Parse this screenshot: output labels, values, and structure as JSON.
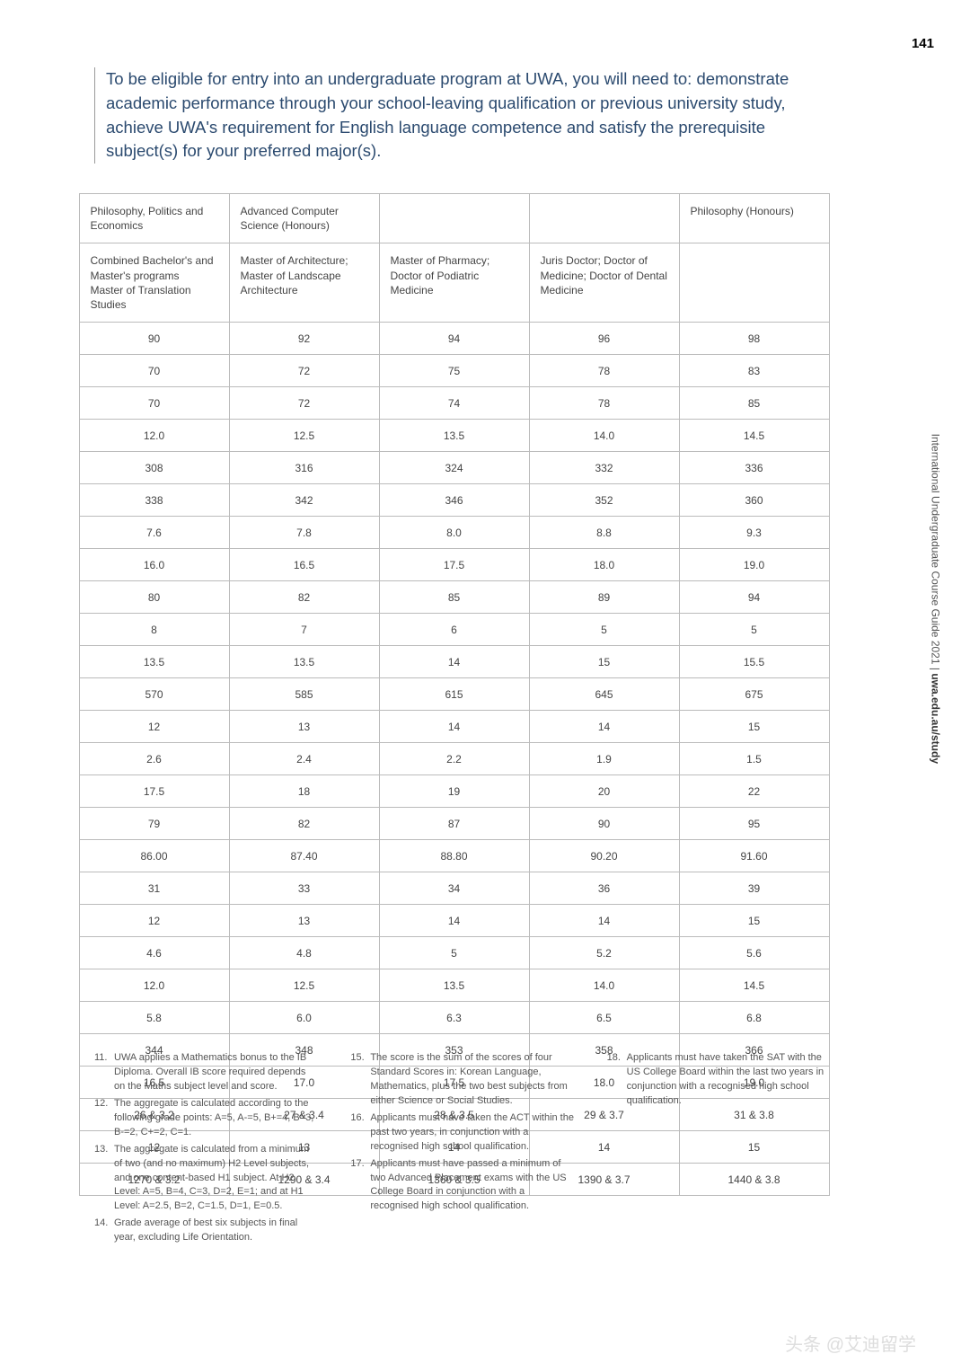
{
  "page_number": "141",
  "intro": "To be eligible for entry into an undergraduate program at UWA, you will need to: demonstrate academic performance through your school-leaving qualification or previous university study, achieve UWA's requirement for English language competence and satisfy the prerequisite subject(s) for your preferred major(s).",
  "table": {
    "head1": [
      "Philosophy, Politics and Economics",
      "Advanced Computer Science (Honours)",
      "",
      "",
      "Philosophy (Honours)"
    ],
    "head2": [
      "Combined Bachelor's and Master's programs\nMaster of Translation Studies",
      "Master of Architecture; Master of Landscape Architecture",
      "Master of Pharmacy; Doctor of Podiatric Medicine",
      "Juris Doctor; Doctor of Medicine; Doctor of Dental Medicine",
      ""
    ],
    "rows": [
      [
        "90",
        "92",
        "94",
        "96",
        "98"
      ],
      [
        "70",
        "72",
        "75",
        "78",
        "83"
      ],
      [
        "70",
        "72",
        "74",
        "78",
        "85"
      ],
      [
        "12.0",
        "12.5",
        "13.5",
        "14.0",
        "14.5"
      ],
      [
        "308",
        "316",
        "324",
        "332",
        "336"
      ],
      [
        "338",
        "342",
        "346",
        "352",
        "360"
      ],
      [
        "7.6",
        "7.8",
        "8.0",
        "8.8",
        "9.3"
      ],
      [
        "16.0",
        "16.5",
        "17.5",
        "18.0",
        "19.0"
      ],
      [
        "80",
        "82",
        "85",
        "89",
        "94"
      ],
      [
        "8",
        "7",
        "6",
        "5",
        "5"
      ],
      [
        "13.5",
        "13.5",
        "14",
        "15",
        "15.5"
      ],
      [
        "570",
        "585",
        "615",
        "645",
        "675"
      ],
      [
        "12",
        "13",
        "14",
        "14",
        "15"
      ],
      [
        "2.6",
        "2.4",
        "2.2",
        "1.9",
        "1.5"
      ],
      [
        "17.5",
        "18",
        "19",
        "20",
        "22"
      ],
      [
        "79",
        "82",
        "87",
        "90",
        "95"
      ],
      [
        "86.00",
        "87.40",
        "88.80",
        "90.20",
        "91.60"
      ],
      [
        "31",
        "33",
        "34",
        "36",
        "39"
      ],
      [
        "12",
        "13",
        "14",
        "14",
        "15"
      ],
      [
        "4.6",
        "4.8",
        "5",
        "5.2",
        "5.6"
      ],
      [
        "12.0",
        "12.5",
        "13.5",
        "14.0",
        "14.5"
      ],
      [
        "5.8",
        "6.0",
        "6.3",
        "6.5",
        "6.8"
      ],
      [
        "344",
        "348",
        "353",
        "358",
        "366"
      ],
      [
        "16.5",
        "17.0",
        "17.5",
        "18.0",
        "19.0"
      ],
      [
        "26 & 3.2",
        "27 & 3.4",
        "28 & 3.5",
        "29 & 3.7",
        "31 & 3.8"
      ],
      [
        "12",
        "13",
        "14",
        "14",
        "15"
      ],
      [
        "1270 & 3.2",
        "1290 & 3.4",
        "1360 & 3.5",
        "1390 & 3.7",
        "1440 & 3.8"
      ]
    ]
  },
  "footnotes": [
    {
      "n": "11.",
      "t": "UWA applies a Mathematics bonus to the IB Diploma. Overall IB score required depends on the Maths subject level and score."
    },
    {
      "n": "12.",
      "t": "The aggregate is calculated according to the following grade points: A=5, A-=5, B+=4, B=3, B-=2, C+=2, C=1."
    },
    {
      "n": "13.",
      "t": "The aggregate is calculated from a minimum of two (and no maximum) H2 Level subjects, and one content-based H1 subject. At H2 Level: A=5, B=4, C=3, D=2, E=1; and at H1 Level: A=2.5, B=2, C=1.5, D=1, E=0.5."
    },
    {
      "n": "14.",
      "t": "Grade average of best six subjects in final year, excluding Life Orientation."
    },
    {
      "n": "15.",
      "t": "The score is the sum of the scores of four Standard Scores in: Korean Language, Mathematics, plus the two best subjects from either Science or Social Studies."
    },
    {
      "n": "16.",
      "t": "Applicants must have taken the ACT within the past two years, in conjunction with a recognised high school qualification."
    },
    {
      "n": "17.",
      "t": "Applicants must have passed a minimum of two Advanced Placement exams with the US College Board in conjunction with a recognised high school qualification."
    },
    {
      "n": "18.",
      "t": "Applicants must have taken the SAT with the US College Board within the last two years in conjunction with a recognised high school qualification."
    }
  ],
  "side": {
    "a": "International Undergraduate Course Guide 2021",
    "sep": "  |  ",
    "b": "uwa.edu.au/study"
  },
  "watermark": "头条 @艾迪留学"
}
